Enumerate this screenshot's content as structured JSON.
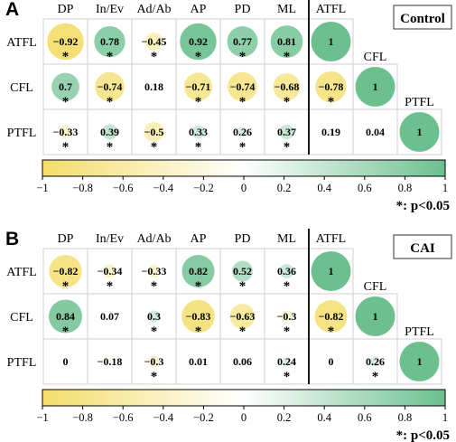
{
  "chart_data": [
    {
      "type": "heatmap",
      "panel": "A",
      "group": "Control",
      "columns": [
        "DP",
        "In/Ev",
        "Ad/Ab",
        "AP",
        "PD",
        "ML",
        "ATFL"
      ],
      "rows": [
        {
          "label": "ATFL",
          "values": [
            -0.92,
            0.78,
            -0.45,
            0.92,
            0.77,
            0.81
          ],
          "sig": [
            true,
            true,
            true,
            true,
            true,
            true
          ],
          "self_col": 6,
          "self_label": "1"
        },
        {
          "label": "CFL",
          "values": [
            0.7,
            -0.74,
            0.18,
            -0.71,
            -0.74,
            -0.68,
            -0.78
          ],
          "sig": [
            true,
            true,
            false,
            true,
            true,
            true,
            true
          ],
          "self_label": "1",
          "self_header": "CFL"
        },
        {
          "label": "PTFL",
          "values": [
            -0.33,
            0.39,
            -0.5,
            0.33,
            0.26,
            0.37,
            0.19,
            0.04
          ],
          "sig": [
            true,
            true,
            true,
            true,
            true,
            true,
            false,
            false
          ],
          "self_label": "1",
          "self_header": "PTFL"
        }
      ],
      "colorbar": {
        "ticks": [
          "−1",
          "−0.8",
          "−0.6",
          "−0.4",
          "−0.2",
          "0",
          "0.2",
          "0.4",
          "0.6",
          "0.8",
          "1"
        ],
        "range": [
          -1,
          1
        ]
      },
      "significance_note": "*: p<0.05",
      "colors": {
        "negative": "#f3dd6a",
        "neutral": "#ffffff",
        "positive": "#6cc08f"
      }
    },
    {
      "type": "heatmap",
      "panel": "B",
      "group": "CAI",
      "columns": [
        "DP",
        "In/Ev",
        "Ad/Ab",
        "AP",
        "PD",
        "ML",
        "ATFL"
      ],
      "rows": [
        {
          "label": "ATFL",
          "values": [
            -0.82,
            -0.34,
            -0.33,
            0.82,
            0.52,
            0.36
          ],
          "sig": [
            true,
            true,
            true,
            true,
            true,
            true
          ],
          "self_col": 6,
          "self_label": "1"
        },
        {
          "label": "CFL",
          "values": [
            0.84,
            0.07,
            0.3,
            -0.83,
            -0.63,
            -0.3,
            -0.82
          ],
          "sig": [
            true,
            false,
            true,
            true,
            true,
            true,
            true
          ],
          "self_label": "1",
          "self_header": "CFL"
        },
        {
          "label": "PTFL",
          "values": [
            0,
            -0.18,
            -0.3,
            0.01,
            0.06,
            0.24,
            0,
            0.26
          ],
          "sig": [
            false,
            false,
            true,
            false,
            false,
            true,
            false,
            true
          ],
          "self_label": "1",
          "self_header": "PTFL"
        }
      ],
      "colorbar": {
        "ticks": [
          "−1",
          "−0.8",
          "−0.6",
          "−0.4",
          "−0.2",
          "0",
          "0.2",
          "0.4",
          "0.6",
          "0.8",
          "1"
        ],
        "range": [
          -1,
          1
        ]
      },
      "significance_note": "*: p<0.05",
      "colors": {
        "negative": "#f3dd6a",
        "neutral": "#ffffff",
        "positive": "#6cc08f"
      }
    }
  ]
}
